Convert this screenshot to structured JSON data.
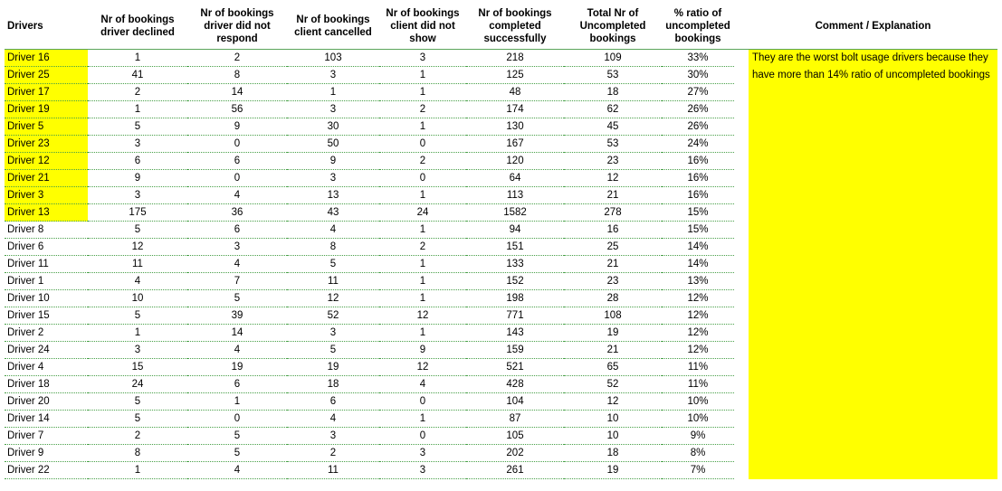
{
  "headers": {
    "driver": "Drivers",
    "declined": "Nr of bookings driver declined",
    "no_respond": "Nr of bookings driver did not respond",
    "client_cancelled": "Nr of bookings client cancelled",
    "no_show": "Nr of bookings client did not show",
    "completed": "Nr of bookings completed successfully",
    "uncompleted": "Total Nr of Uncompleted bookings",
    "ratio": "% ratio of uncompleted bookings",
    "comment": "Comment / Explanation"
  },
  "comment_lines": [
    "They are the worst bolt usage drivers because they",
    "have more than 14% ratio of uncompleted bookings"
  ],
  "highlight_color": "#ffff00",
  "rows": [
    {
      "driver": "Driver 16",
      "declined": "1",
      "no_respond": "2",
      "client_cancelled": "103",
      "no_show": "3",
      "completed": "218",
      "uncompleted": "109",
      "ratio": "33%",
      "highlight": true
    },
    {
      "driver": "Driver 25",
      "declined": "41",
      "no_respond": "8",
      "client_cancelled": "3",
      "no_show": "1",
      "completed": "125",
      "uncompleted": "53",
      "ratio": "30%",
      "highlight": true
    },
    {
      "driver": "Driver 17",
      "declined": "2",
      "no_respond": "14",
      "client_cancelled": "1",
      "no_show": "1",
      "completed": "48",
      "uncompleted": "18",
      "ratio": "27%",
      "highlight": true
    },
    {
      "driver": "Driver 19",
      "declined": "1",
      "no_respond": "56",
      "client_cancelled": "3",
      "no_show": "2",
      "completed": "174",
      "uncompleted": "62",
      "ratio": "26%",
      "highlight": true
    },
    {
      "driver": "Driver 5",
      "declined": "5",
      "no_respond": "9",
      "client_cancelled": "30",
      "no_show": "1",
      "completed": "130",
      "uncompleted": "45",
      "ratio": "26%",
      "highlight": true
    },
    {
      "driver": "Driver 23",
      "declined": "3",
      "no_respond": "0",
      "client_cancelled": "50",
      "no_show": "0",
      "completed": "167",
      "uncompleted": "53",
      "ratio": "24%",
      "highlight": true
    },
    {
      "driver": "Driver 12",
      "declined": "6",
      "no_respond": "6",
      "client_cancelled": "9",
      "no_show": "2",
      "completed": "120",
      "uncompleted": "23",
      "ratio": "16%",
      "highlight": true
    },
    {
      "driver": "Driver 21",
      "declined": "9",
      "no_respond": "0",
      "client_cancelled": "3",
      "no_show": "0",
      "completed": "64",
      "uncompleted": "12",
      "ratio": "16%",
      "highlight": true
    },
    {
      "driver": "Driver 3",
      "declined": "3",
      "no_respond": "4",
      "client_cancelled": "13",
      "no_show": "1",
      "completed": "113",
      "uncompleted": "21",
      "ratio": "16%",
      "highlight": true
    },
    {
      "driver": "Driver 13",
      "declined": "175",
      "no_respond": "36",
      "client_cancelled": "43",
      "no_show": "24",
      "completed": "1582",
      "uncompleted": "278",
      "ratio": "15%",
      "highlight": true
    },
    {
      "driver": "Driver 8",
      "declined": "5",
      "no_respond": "6",
      "client_cancelled": "4",
      "no_show": "1",
      "completed": "94",
      "uncompleted": "16",
      "ratio": "15%",
      "highlight": false
    },
    {
      "driver": "Driver 6",
      "declined": "12",
      "no_respond": "3",
      "client_cancelled": "8",
      "no_show": "2",
      "completed": "151",
      "uncompleted": "25",
      "ratio": "14%",
      "highlight": false
    },
    {
      "driver": "Driver 11",
      "declined": "11",
      "no_respond": "4",
      "client_cancelled": "5",
      "no_show": "1",
      "completed": "133",
      "uncompleted": "21",
      "ratio": "14%",
      "highlight": false
    },
    {
      "driver": "Driver 1",
      "declined": "4",
      "no_respond": "7",
      "client_cancelled": "11",
      "no_show": "1",
      "completed": "152",
      "uncompleted": "23",
      "ratio": "13%",
      "highlight": false
    },
    {
      "driver": "Driver 10",
      "declined": "10",
      "no_respond": "5",
      "client_cancelled": "12",
      "no_show": "1",
      "completed": "198",
      "uncompleted": "28",
      "ratio": "12%",
      "highlight": false
    },
    {
      "driver": "Driver 15",
      "declined": "5",
      "no_respond": "39",
      "client_cancelled": "52",
      "no_show": "12",
      "completed": "771",
      "uncompleted": "108",
      "ratio": "12%",
      "highlight": false
    },
    {
      "driver": "Driver 2",
      "declined": "1",
      "no_respond": "14",
      "client_cancelled": "3",
      "no_show": "1",
      "completed": "143",
      "uncompleted": "19",
      "ratio": "12%",
      "highlight": false
    },
    {
      "driver": "Driver 24",
      "declined": "3",
      "no_respond": "4",
      "client_cancelled": "5",
      "no_show": "9",
      "completed": "159",
      "uncompleted": "21",
      "ratio": "12%",
      "highlight": false
    },
    {
      "driver": "Driver 4",
      "declined": "15",
      "no_respond": "19",
      "client_cancelled": "19",
      "no_show": "12",
      "completed": "521",
      "uncompleted": "65",
      "ratio": "11%",
      "highlight": false
    },
    {
      "driver": "Driver 18",
      "declined": "24",
      "no_respond": "6",
      "client_cancelled": "18",
      "no_show": "4",
      "completed": "428",
      "uncompleted": "52",
      "ratio": "11%",
      "highlight": false
    },
    {
      "driver": "Driver 20",
      "declined": "5",
      "no_respond": "1",
      "client_cancelled": "6",
      "no_show": "0",
      "completed": "104",
      "uncompleted": "12",
      "ratio": "10%",
      "highlight": false
    },
    {
      "driver": "Driver 14",
      "declined": "5",
      "no_respond": "0",
      "client_cancelled": "4",
      "no_show": "1",
      "completed": "87",
      "uncompleted": "10",
      "ratio": "10%",
      "highlight": false
    },
    {
      "driver": "Driver 7",
      "declined": "2",
      "no_respond": "5",
      "client_cancelled": "3",
      "no_show": "0",
      "completed": "105",
      "uncompleted": "10",
      "ratio": "9%",
      "highlight": false
    },
    {
      "driver": "Driver 9",
      "declined": "8",
      "no_respond": "5",
      "client_cancelled": "2",
      "no_show": "3",
      "completed": "202",
      "uncompleted": "18",
      "ratio": "8%",
      "highlight": false
    },
    {
      "driver": "Driver 22",
      "declined": "1",
      "no_respond": "4",
      "client_cancelled": "11",
      "no_show": "3",
      "completed": "261",
      "uncompleted": "19",
      "ratio": "7%",
      "highlight": false
    }
  ]
}
